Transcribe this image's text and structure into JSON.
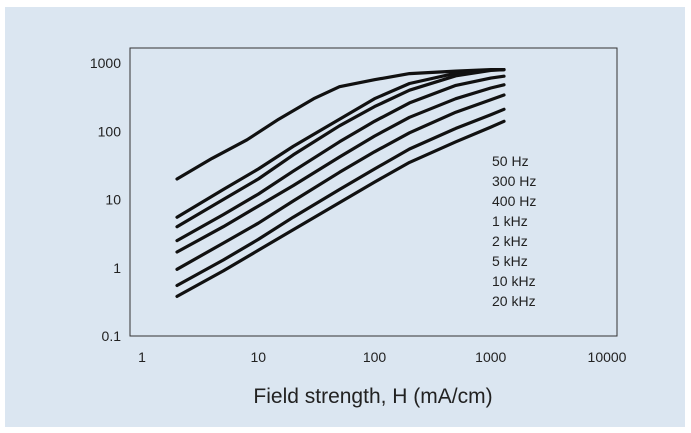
{
  "chart_data": {
    "type": "line",
    "title": "",
    "xlabel": "Field strength, H (mA/cm)",
    "ylabel": "",
    "xscale": "log",
    "yscale": "log",
    "xlim": [
      1,
      10000
    ],
    "ylim": [
      0.1,
      1000
    ],
    "grid": false,
    "legend": "right",
    "line_color": "#111111",
    "background": "#dbe6f1",
    "x_ticks": [
      "1",
      "10",
      "100",
      "1000",
      "10000"
    ],
    "y_ticks": [
      "1000",
      "100",
      "10",
      "1",
      "0.1"
    ],
    "series": [
      {
        "name": "50 Hz",
        "points": [
          [
            2,
            20
          ],
          [
            4,
            40
          ],
          [
            8,
            75
          ],
          [
            15,
            150
          ],
          [
            30,
            300
          ],
          [
            50,
            450
          ],
          [
            100,
            570
          ],
          [
            200,
            700
          ],
          [
            500,
            760
          ],
          [
            1000,
            800
          ],
          [
            1300,
            800
          ]
        ]
      },
      {
        "name": "300 Hz",
        "points": [
          [
            2,
            5.5
          ],
          [
            5,
            14
          ],
          [
            10,
            28
          ],
          [
            20,
            60
          ],
          [
            50,
            150
          ],
          [
            100,
            300
          ],
          [
            200,
            500
          ],
          [
            500,
            710
          ],
          [
            1000,
            790
          ],
          [
            1300,
            800
          ]
        ]
      },
      {
        "name": "400 Hz",
        "points": [
          [
            2,
            4
          ],
          [
            5,
            10
          ],
          [
            10,
            20
          ],
          [
            20,
            45
          ],
          [
            50,
            120
          ],
          [
            100,
            230
          ],
          [
            200,
            400
          ],
          [
            500,
            650
          ],
          [
            1000,
            780
          ],
          [
            1300,
            800
          ]
        ]
      },
      {
        "name": "1 kHz",
        "points": [
          [
            2,
            2.5
          ],
          [
            5,
            6
          ],
          [
            10,
            12
          ],
          [
            20,
            26
          ],
          [
            50,
            70
          ],
          [
            100,
            140
          ],
          [
            200,
            260
          ],
          [
            500,
            470
          ],
          [
            1000,
            600
          ],
          [
            1300,
            640
          ]
        ]
      },
      {
        "name": "2 kHz",
        "points": [
          [
            2,
            1.7
          ],
          [
            5,
            4
          ],
          [
            10,
            8
          ],
          [
            20,
            16
          ],
          [
            50,
            42
          ],
          [
            100,
            85
          ],
          [
            200,
            160
          ],
          [
            500,
            300
          ],
          [
            1000,
            430
          ],
          [
            1300,
            480
          ]
        ]
      },
      {
        "name": "5 kHz",
        "points": [
          [
            2,
            0.95
          ],
          [
            5,
            2.3
          ],
          [
            10,
            4.5
          ],
          [
            20,
            9.5
          ],
          [
            50,
            25
          ],
          [
            100,
            50
          ],
          [
            200,
            95
          ],
          [
            500,
            190
          ],
          [
            1000,
            290
          ],
          [
            1300,
            340
          ]
        ]
      },
      {
        "name": "10 kHz",
        "points": [
          [
            2,
            0.55
          ],
          [
            5,
            1.3
          ],
          [
            10,
            2.6
          ],
          [
            20,
            5.5
          ],
          [
            50,
            14
          ],
          [
            100,
            28
          ],
          [
            200,
            55
          ],
          [
            500,
            110
          ],
          [
            1000,
            175
          ],
          [
            1300,
            210
          ]
        ]
      },
      {
        "name": "20 kHz",
        "points": [
          [
            2,
            0.38
          ],
          [
            5,
            0.9
          ],
          [
            10,
            1.8
          ],
          [
            20,
            3.6
          ],
          [
            50,
            9
          ],
          [
            100,
            18
          ],
          [
            200,
            35
          ],
          [
            500,
            70
          ],
          [
            1000,
            115
          ],
          [
            1300,
            140
          ]
        ]
      }
    ]
  }
}
